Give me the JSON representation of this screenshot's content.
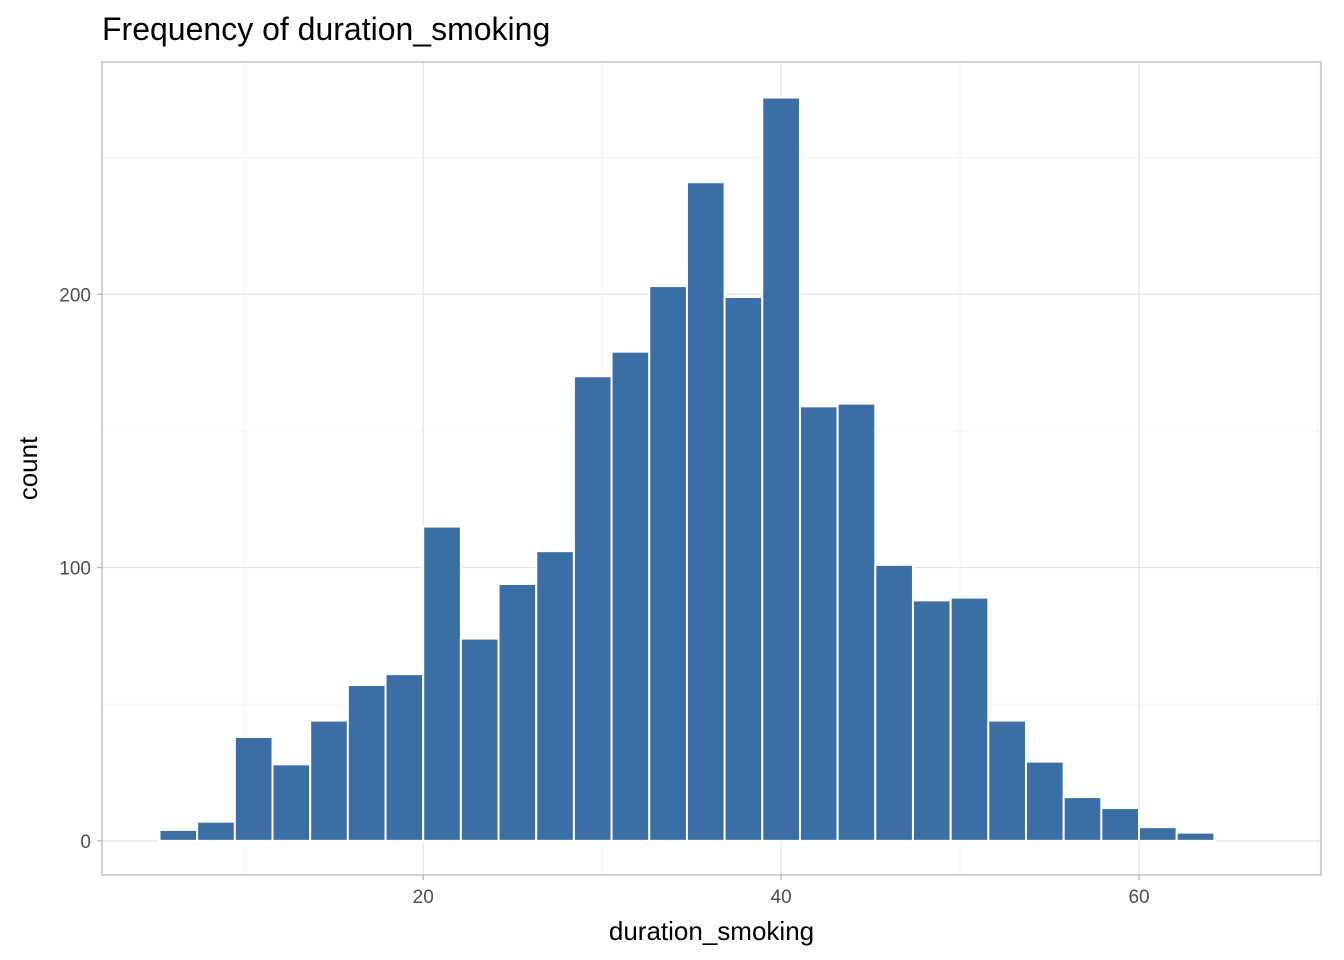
{
  "chart_data": {
    "type": "bar",
    "title": "Frequency of duration_smoking",
    "xlabel": "duration_smoking",
    "ylabel": "count",
    "bin_width": 2.105,
    "bins": [
      {
        "start": 5.263,
        "end": 7.368,
        "count": 4
      },
      {
        "start": 7.368,
        "end": 9.474,
        "count": 7
      },
      {
        "start": 9.474,
        "end": 11.579,
        "count": 38
      },
      {
        "start": 11.579,
        "end": 13.684,
        "count": 28
      },
      {
        "start": 13.684,
        "end": 15.789,
        "count": 44
      },
      {
        "start": 15.789,
        "end": 17.895,
        "count": 57
      },
      {
        "start": 17.895,
        "end": 20.0,
        "count": 61
      },
      {
        "start": 20.0,
        "end": 22.105,
        "count": 115
      },
      {
        "start": 22.105,
        "end": 24.211,
        "count": 74
      },
      {
        "start": 24.211,
        "end": 26.316,
        "count": 94
      },
      {
        "start": 26.316,
        "end": 28.421,
        "count": 106
      },
      {
        "start": 28.421,
        "end": 30.526,
        "count": 170
      },
      {
        "start": 30.526,
        "end": 32.632,
        "count": 179
      },
      {
        "start": 32.632,
        "end": 34.737,
        "count": 203
      },
      {
        "start": 34.737,
        "end": 36.842,
        "count": 241
      },
      {
        "start": 36.842,
        "end": 38.947,
        "count": 199
      },
      {
        "start": 38.947,
        "end": 41.053,
        "count": 272
      },
      {
        "start": 41.053,
        "end": 43.158,
        "count": 159
      },
      {
        "start": 43.158,
        "end": 45.263,
        "count": 160
      },
      {
        "start": 45.263,
        "end": 47.368,
        "count": 101
      },
      {
        "start": 47.368,
        "end": 49.474,
        "count": 88
      },
      {
        "start": 49.474,
        "end": 51.579,
        "count": 89
      },
      {
        "start": 51.579,
        "end": 53.684,
        "count": 44
      },
      {
        "start": 53.684,
        "end": 55.789,
        "count": 29
      },
      {
        "start": 55.789,
        "end": 57.895,
        "count": 16
      },
      {
        "start": 57.895,
        "end": 60.0,
        "count": 12
      },
      {
        "start": 60.0,
        "end": 62.105,
        "count": 5
      },
      {
        "start": 62.105,
        "end": 64.211,
        "count": 3
      },
      {
        "start": 64.211,
        "end": 66.316,
        "count": 0
      },
      {
        "start": 66.316,
        "end": 68.421,
        "count": 0
      }
    ],
    "xlim": [
      2.05,
      70.17
    ],
    "ylim": [
      -12.5,
      285
    ],
    "x_ticks": [
      20,
      40,
      60
    ],
    "x_minor_ticks": [
      10,
      30,
      50,
      70
    ],
    "y_ticks": [
      0,
      100,
      200
    ],
    "y_minor_ticks": [
      50,
      150,
      250
    ],
    "grid": true,
    "colors": {
      "bar_fill": "#3a6ea5",
      "bar_outline": "#ffffff",
      "panel_border": "#b3b3b3",
      "grid_major": "#e3e3e3",
      "grid_minor": "#f2f2f2"
    }
  }
}
